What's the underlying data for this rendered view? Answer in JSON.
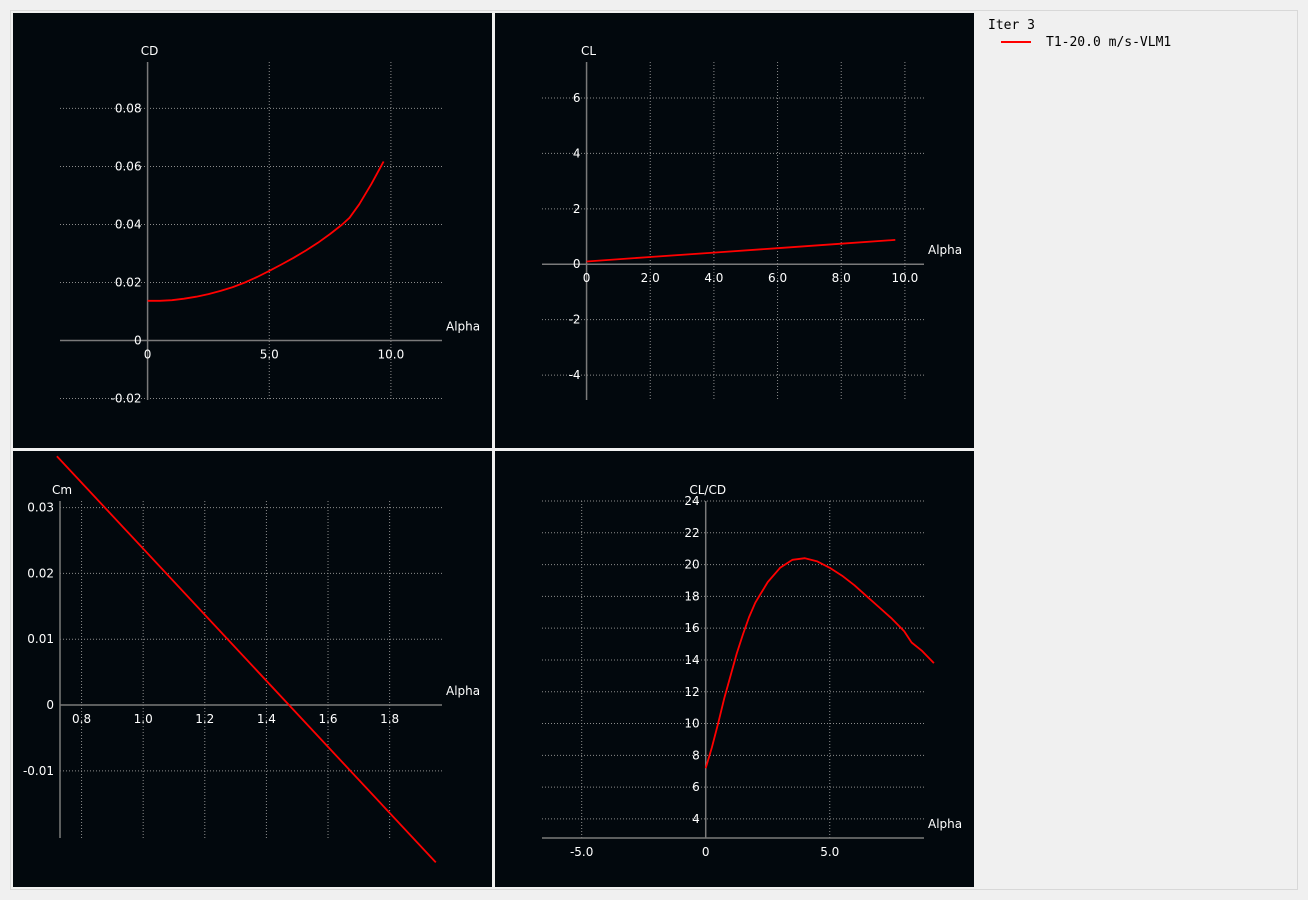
{
  "colors": {
    "background": "#02080d",
    "axis": "#7a7a7a",
    "grid": "#8c8c8c",
    "curve": "#ff0000",
    "text": "#ffffff"
  },
  "legend": {
    "title": "Iter 3",
    "entries": [
      {
        "label": "T1-20.0 m/s-VLM1",
        "color": "#ff0000"
      }
    ]
  },
  "chart_data": [
    {
      "id": "cd",
      "type": "line",
      "xlabel": "Alpha",
      "ylabel": "CD",
      "xlim": [
        -3.6,
        12.1
      ],
      "ylim": [
        -0.0205,
        0.096
      ],
      "xticks": [
        0,
        5.0,
        10.0
      ],
      "xtick_labels": [
        "0",
        "5.0",
        "10.0"
      ],
      "yticks": [
        -0.02,
        0,
        0.02,
        0.04,
        0.06,
        0.08
      ],
      "ytick_labels": [
        "-0.02",
        "0",
        "0.02",
        "0.04",
        "0.06",
        "0.08"
      ],
      "grid": true,
      "series": [
        {
          "x": [
            0,
            0.5,
            1,
            1.5,
            2,
            2.5,
            3,
            3.5,
            4,
            4.5,
            5,
            5.5,
            6,
            6.5,
            7,
            7.5,
            8,
            8.3,
            8.7,
            9.2,
            9.7
          ],
          "y": [
            0.0137,
            0.0137,
            0.0139,
            0.0144,
            0.0151,
            0.016,
            0.0171,
            0.0184,
            0.02,
            0.0219,
            0.024,
            0.0262,
            0.0285,
            0.031,
            0.0337,
            0.0367,
            0.04,
            0.0423,
            0.047,
            0.054,
            0.0617
          ]
        }
      ]
    },
    {
      "id": "cl",
      "type": "line",
      "xlabel": "Alpha",
      "ylabel": "CL",
      "xlim": [
        -1.4,
        10.6
      ],
      "ylim": [
        -4.9,
        7.3
      ],
      "xticks": [
        0,
        2.0,
        4.0,
        6.0,
        8.0,
        10.0
      ],
      "xtick_labels": [
        "0",
        "2.0",
        "4.0",
        "6.0",
        "8.0",
        "10.0"
      ],
      "yticks": [
        -4,
        -2,
        0,
        2,
        4,
        6
      ],
      "ytick_labels": [
        "-4",
        "-2",
        "0",
        "2",
        "4",
        "6"
      ],
      "grid": true,
      "series": [
        {
          "x": [
            0,
            2,
            4,
            6,
            8,
            9.7
          ],
          "y": [
            0.1,
            0.26,
            0.42,
            0.58,
            0.74,
            0.88
          ]
        }
      ]
    },
    {
      "id": "cm",
      "type": "line",
      "xlabel": "Alpha",
      "ylabel": "Cm",
      "xlim": [
        0.73,
        1.97
      ],
      "ylim": [
        -0.0202,
        0.031
      ],
      "xticks": [
        0.8,
        1.0,
        1.2,
        1.4,
        1.6,
        1.8
      ],
      "xtick_labels": [
        "0.8",
        "1.0",
        "1.2",
        "1.4",
        "1.6",
        "1.8"
      ],
      "yticks": [
        -0.01,
        0,
        0.01,
        0.02,
        0.03
      ],
      "ytick_labels": [
        "-0.01",
        "0",
        "0.01",
        "0.02",
        "0.03"
      ],
      "grid": true,
      "series": [
        {
          "x": [
            0.72,
            1.95
          ],
          "y": [
            0.0378,
            -0.0239
          ]
        }
      ]
    },
    {
      "id": "clcd",
      "type": "line",
      "xlabel": "Alpha",
      "ylabel": "CL/CD",
      "xlim": [
        -6.6,
        8.8
      ],
      "ylim": [
        2.8,
        24
      ],
      "xticks": [
        -5.0,
        0,
        5.0
      ],
      "xtick_labels": [
        "-5.0",
        "0",
        "5.0"
      ],
      "yticks": [
        4,
        6,
        8,
        10,
        12,
        14,
        16,
        18,
        20,
        22,
        24
      ],
      "ytick_labels": [
        "4",
        "6",
        "8",
        "10",
        "12",
        "14",
        "16",
        "18",
        "20",
        "22",
        "24"
      ],
      "grid": true,
      "series": [
        {
          "x": [
            0,
            0.25,
            0.5,
            0.75,
            1,
            1.25,
            1.5,
            1.75,
            2,
            2.5,
            3,
            3.5,
            4,
            4.5,
            5,
            5.5,
            6,
            6.5,
            7,
            7.5,
            8,
            8.3,
            8.7,
            9.2
          ],
          "y": [
            7.2,
            8.5,
            10.0,
            11.6,
            13.0,
            14.4,
            15.6,
            16.7,
            17.6,
            18.9,
            19.8,
            20.3,
            20.4,
            20.2,
            19.8,
            19.3,
            18.7,
            18.0,
            17.3,
            16.6,
            15.8,
            15.1,
            14.6,
            13.8
          ]
        }
      ]
    }
  ]
}
